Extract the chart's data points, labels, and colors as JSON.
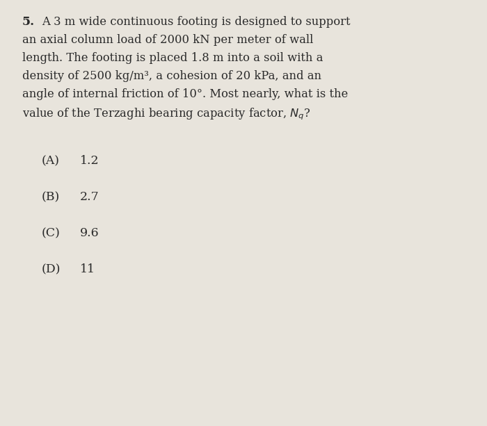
{
  "background_color": "#e8e4dc",
  "question_number": "5.",
  "question_text_lines": [
    "A 3 m wide continuous footing is designed to support",
    "an axial column load of 2000 kN per meter of wall",
    "length. The footing is placed 1.8 m into a soil with a",
    "density of 2500 kg/m³, a cohesion of 20 kPa, and an",
    "angle of internal friction of 10°. Most nearly, what is the",
    "value of the Terzaghi bearing capacity factor, $N_q$?"
  ],
  "options": [
    [
      "(A)",
      "1.2"
    ],
    [
      "(B)",
      "2.7"
    ],
    [
      "(C)",
      "9.6"
    ],
    [
      "(D)",
      "11"
    ]
  ],
  "text_color": "#2a2a2a",
  "font_size_question": 11.8,
  "font_size_options": 12.5,
  "question_number_fontsize": 12.5
}
